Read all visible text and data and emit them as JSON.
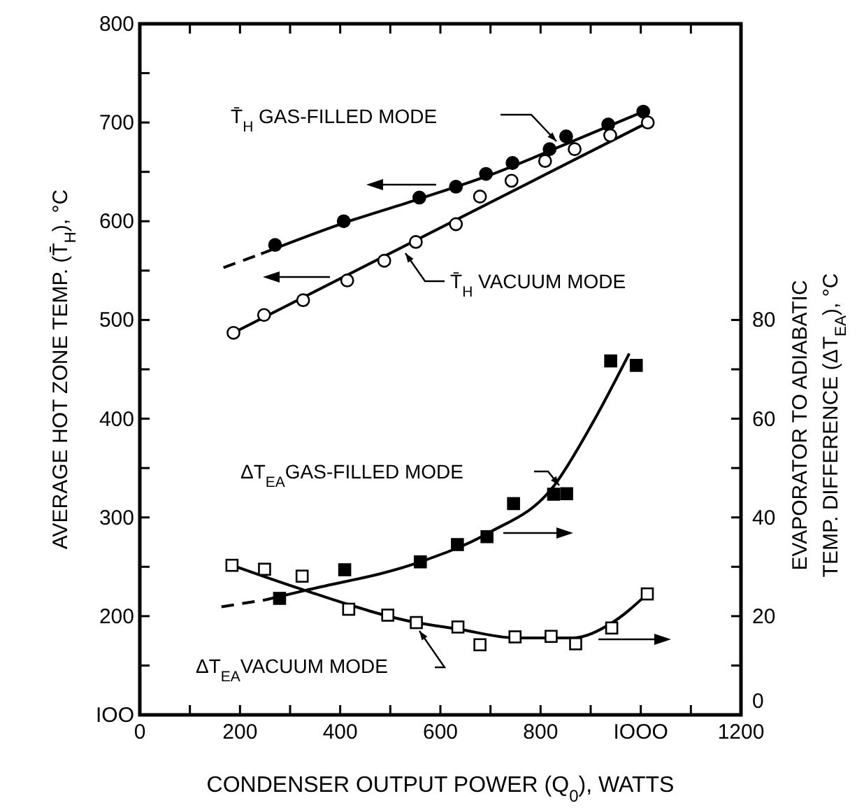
{
  "chart_data": {
    "type": "scatter",
    "xlabel": "CONDENSER OUTPUT POWER (Q$_{0}$), WATTS",
    "ylabel": "AVERAGE  HOT  ZONE  TEMP. (T̄$_{H}$), °C",
    "y2label": "EVAPORATOR  TO  ADIABATIC\nTEMP.  DIFFERENCE  (ΔT$_{EA}$), °C",
    "xlim": [
      0,
      1200
    ],
    "xticks": [
      0,
      {
        "value": 100,
        "label": null
      },
      200,
      {
        "value": 300,
        "label": null
      },
      400,
      {
        "value": 500,
        "label": null
      },
      600,
      {
        "value": 700,
        "label": null
      },
      800,
      {
        "value": 900,
        "label": null
      },
      {
        "value": 1000,
        "label": "IOOO"
      },
      {
        "value": 1100,
        "label": null
      },
      1200
    ],
    "ylim": [
      100,
      800
    ],
    "yticks": [
      {
        "value": 100,
        "label": "IOO"
      },
      {
        "value": 150,
        "label": null
      },
      200,
      {
        "value": 250,
        "label": null
      },
      300,
      {
        "value": 350,
        "label": null
      },
      400,
      {
        "value": 450,
        "label": null
      },
      500,
      {
        "value": 550,
        "label": null
      },
      600,
      {
        "value": 650,
        "label": null
      },
      700,
      {
        "value": 750,
        "label": null
      },
      800
    ],
    "y2lim": [
      0,
      140
    ],
    "y2ticks": [
      0,
      {
        "value": 10,
        "label": null
      },
      20,
      {
        "value": 30,
        "label": null
      },
      40,
      {
        "value": 50,
        "label": null
      },
      60,
      {
        "value": 70,
        "label": null
      },
      80
    ],
    "grid": false,
    "legend": false,
    "series": [
      {
        "name": "T̄$_{H}$  GAS-FILLED MODE",
        "color": "#000000",
        "marker": "circle",
        "x": [
          270,
          407,
          558,
          631,
          691,
          744,
          818,
          851,
          935,
          1005
        ],
        "values": [
          576,
          600,
          624,
          635,
          648,
          659,
          673,
          686,
          698,
          711
        ]
      },
      {
        "type": "line",
        "color": "#000000",
        "marker": "none",
        "line_style": "solid",
        "x": [
          242,
          400,
          560,
          700,
          850,
          1005
        ],
        "values": [
          567,
          597,
          623,
          647,
          678,
          711
        ]
      },
      {
        "type": "line",
        "color": "#000000",
        "marker": "none",
        "line_style": "dashed",
        "x": [
          167,
          242
        ],
        "values": [
          553,
          567
        ]
      },
      {
        "name": "T̄$_{H}$ VACUUM  MODE",
        "color": "#ffffff",
        "marker": "circle",
        "x": [
          187,
          248,
          326,
          414,
          488,
          551,
          631,
          679,
          742,
          809,
          868,
          939,
          1014
        ],
        "values": [
          487,
          505,
          520,
          540,
          560,
          579,
          597,
          625,
          641,
          661,
          673,
          687,
          700
        ]
      },
      {
        "type": "line",
        "color": "#000000",
        "marker": "none",
        "line_style": "solid",
        "x": [
          187,
          1014
        ],
        "values": [
          487,
          700
        ]
      },
      {
        "name": "ΔT$_{EA}$GAS-FILLED  MODE",
        "axis": "y2",
        "color": "#000000",
        "marker": "square",
        "x": [
          279,
          409,
          560,
          634,
          693,
          746,
          826,
          852,
          940,
          991
        ],
        "values": [
          23.6,
          29.4,
          31,
          34.5,
          36.1,
          42.8,
          44.7,
          44.8,
          71.7,
          70.8
        ]
      },
      {
        "type": "line",
        "axis": "y2",
        "color": "#000000",
        "marker": "none",
        "line_style": "solid",
        "x": [
          251,
          330,
          560,
          693,
          826,
          902,
          977
        ],
        "values": [
          23.3,
          25.2,
          31,
          36.7,
          46.3,
          58.8,
          73.2
        ]
      },
      {
        "type": "line",
        "axis": "y2",
        "color": "#000000",
        "marker": "none",
        "line_style": "dashed",
        "x": [
          163,
          251
        ],
        "values": [
          21.9,
          23.3
        ]
      },
      {
        "name": "ΔT$_{EA}$VACUUM  MODE",
        "axis": "y2",
        "color": "#ffffff",
        "marker": "square",
        "x": [
          184,
          249,
          324,
          417,
          495,
          552,
          635,
          679,
          749,
          821,
          870,
          942,
          1013
        ],
        "values": [
          30.3,
          29.5,
          28.1,
          21.4,
          20.2,
          18.7,
          17.8,
          14.2,
          15.8,
          15.9,
          14.4,
          17.6,
          24.5
        ]
      },
      {
        "type": "line",
        "axis": "y2",
        "color": "#000000",
        "marker": "none",
        "line_style": "solid",
        "x": [
          184,
          330,
          552,
          635,
          749,
          865,
          940,
          1013
        ],
        "values": [
          30.3,
          25.2,
          18.7,
          17.4,
          15.6,
          15.6,
          18.5,
          24.5
        ]
      }
    ]
  }
}
